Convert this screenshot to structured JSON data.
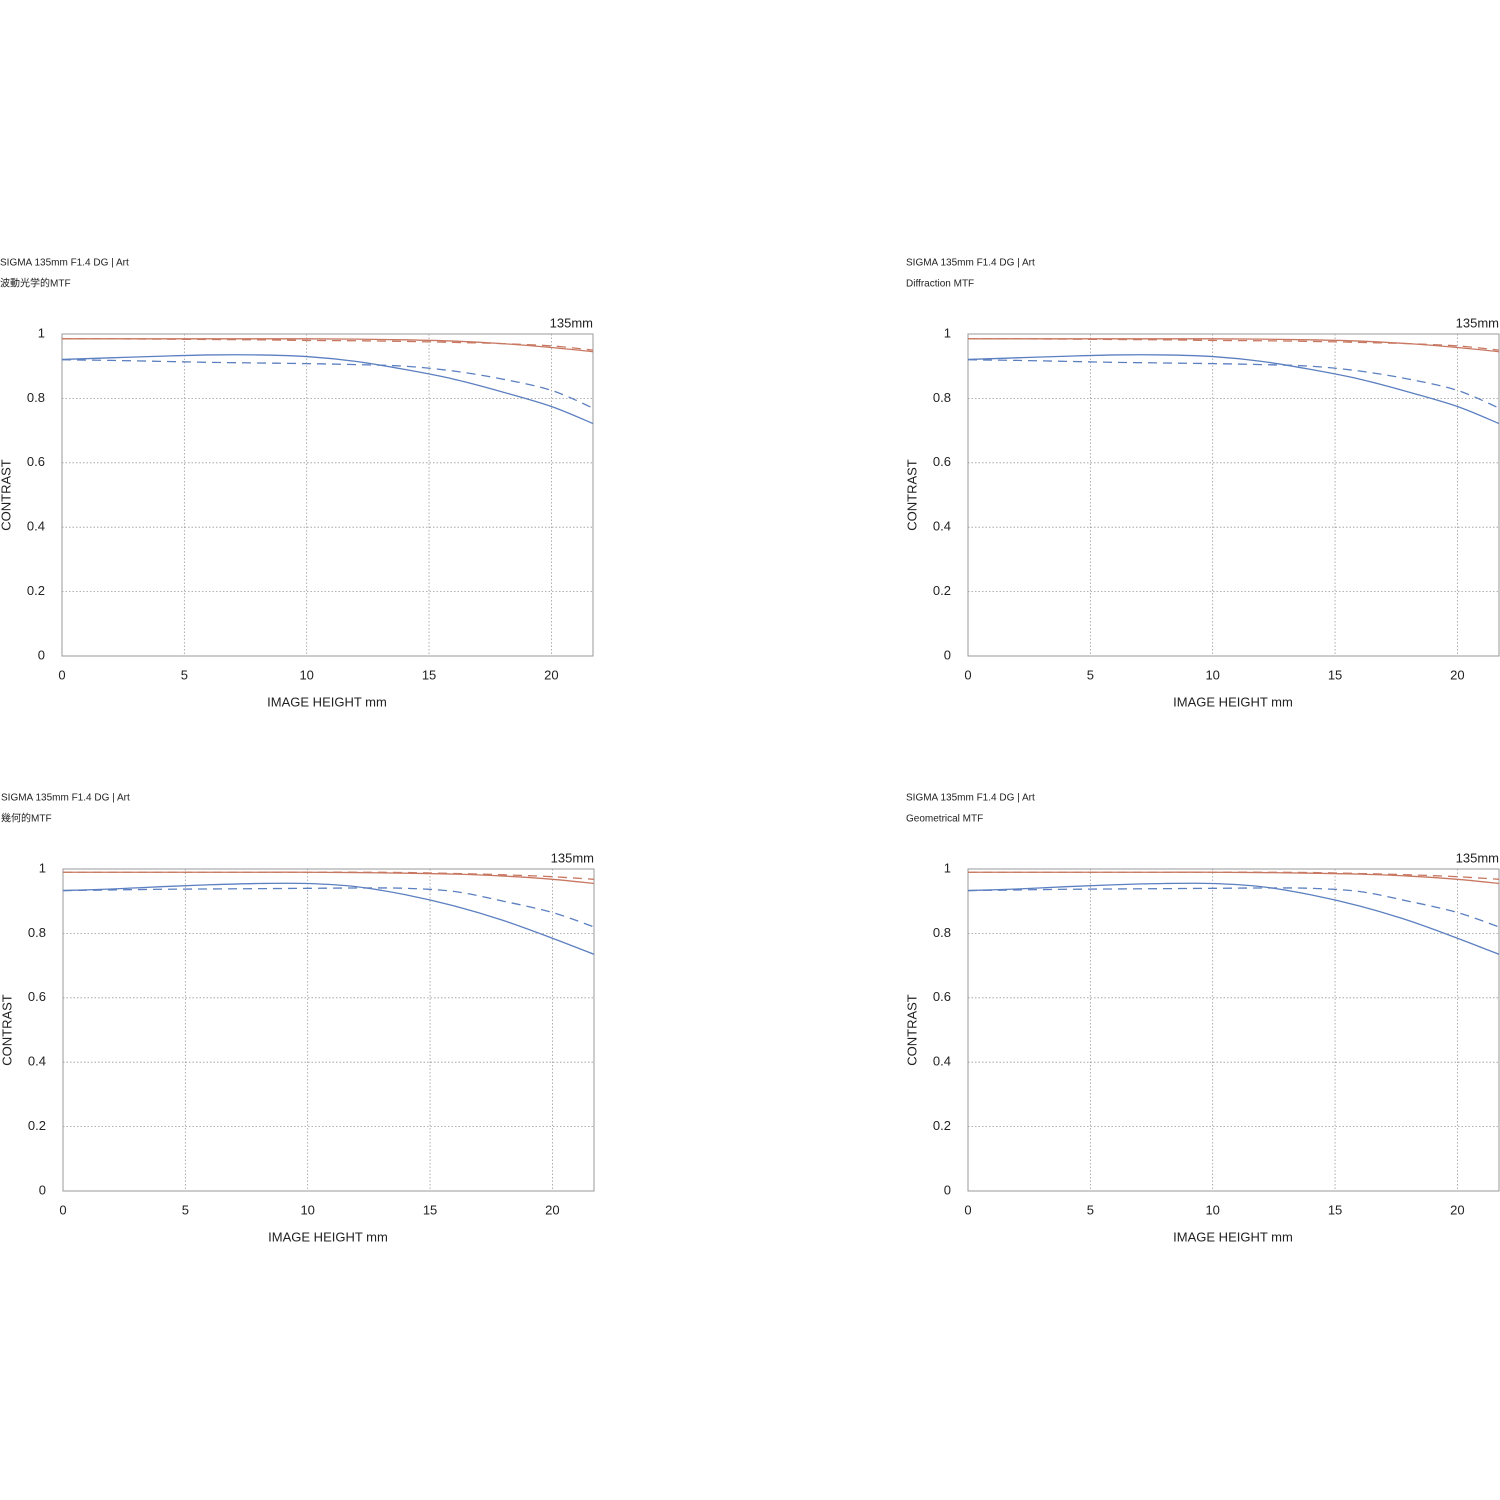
{
  "chart_data": [
    {
      "type": "line",
      "title": "SIGMA 135mm F1.4 DG | Art",
      "subtitle": "波動光学的MTF",
      "annotation": "135mm",
      "xlabel": "IMAGE HEIGHT  mm",
      "ylabel": "CONTRAST",
      "xlim": [
        0,
        21.7
      ],
      "ylim": [
        0,
        1
      ],
      "xticks": [
        0,
        5,
        10,
        15,
        20
      ],
      "yticks": [
        0,
        0.2,
        0.4,
        0.6,
        0.8,
        1
      ],
      "grid": true,
      "x": [
        0,
        2,
        4,
        6,
        8,
        10,
        12,
        14,
        16,
        18,
        20,
        21.7
      ],
      "series": [
        {
          "color": "#c87862",
          "dash": false,
          "values": [
            0.985,
            0.985,
            0.985,
            0.985,
            0.985,
            0.985,
            0.984,
            0.982,
            0.978,
            0.97,
            0.958,
            0.945
          ]
        },
        {
          "color": "#c87862",
          "dash": true,
          "values": [
            0.985,
            0.985,
            0.984,
            0.983,
            0.982,
            0.98,
            0.979,
            0.977,
            0.974,
            0.97,
            0.963,
            0.95
          ]
        },
        {
          "color": "#5b7fc0",
          "dash": false,
          "values": [
            0.921,
            0.926,
            0.931,
            0.935,
            0.935,
            0.93,
            0.915,
            0.89,
            0.86,
            0.82,
            0.775,
            0.722
          ]
        },
        {
          "color": "#5b7fc0",
          "dash": true,
          "values": [
            0.92,
            0.918,
            0.915,
            0.912,
            0.91,
            0.908,
            0.905,
            0.9,
            0.885,
            0.86,
            0.825,
            0.77
          ]
        }
      ]
    },
    {
      "type": "line",
      "title": "SIGMA 135mm F1.4 DG | Art",
      "subtitle": "Diffraction MTF",
      "annotation": "135mm",
      "xlabel": "IMAGE HEIGHT  mm",
      "ylabel": "CONTRAST",
      "xlim": [
        0,
        21.7
      ],
      "ylim": [
        0,
        1
      ],
      "xticks": [
        0,
        5,
        10,
        15,
        20
      ],
      "yticks": [
        0,
        0.2,
        0.4,
        0.6,
        0.8,
        1
      ],
      "grid": true,
      "x": [
        0,
        2,
        4,
        6,
        8,
        10,
        12,
        14,
        16,
        18,
        20,
        21.7
      ],
      "series": [
        {
          "color": "#c87862",
          "dash": false,
          "values": [
            0.985,
            0.985,
            0.985,
            0.985,
            0.985,
            0.985,
            0.984,
            0.982,
            0.978,
            0.97,
            0.958,
            0.945
          ]
        },
        {
          "color": "#c87862",
          "dash": true,
          "values": [
            0.985,
            0.985,
            0.984,
            0.983,
            0.982,
            0.98,
            0.979,
            0.977,
            0.974,
            0.97,
            0.963,
            0.95
          ]
        },
        {
          "color": "#5b7fc0",
          "dash": false,
          "values": [
            0.921,
            0.926,
            0.931,
            0.935,
            0.935,
            0.93,
            0.915,
            0.89,
            0.86,
            0.82,
            0.775,
            0.722
          ]
        },
        {
          "color": "#5b7fc0",
          "dash": true,
          "values": [
            0.92,
            0.918,
            0.915,
            0.912,
            0.91,
            0.908,
            0.905,
            0.9,
            0.885,
            0.86,
            0.825,
            0.77
          ]
        }
      ]
    },
    {
      "type": "line",
      "title": "SIGMA 135mm F1.4 DG | Art",
      "subtitle": "幾何的MTF",
      "annotation": "135mm",
      "xlabel": "IMAGE HEIGHT  mm",
      "ylabel": "CONTRAST",
      "xlim": [
        0,
        21.7
      ],
      "ylim": [
        0,
        1
      ],
      "xticks": [
        0,
        5,
        10,
        15,
        20
      ],
      "yticks": [
        0,
        0.2,
        0.4,
        0.6,
        0.8,
        1
      ],
      "grid": true,
      "x": [
        0,
        2,
        4,
        6,
        8,
        10,
        12,
        14,
        16,
        18,
        20,
        21.7
      ],
      "series": [
        {
          "color": "#c87862",
          "dash": false,
          "values": [
            0.99,
            0.99,
            0.99,
            0.99,
            0.99,
            0.99,
            0.989,
            0.987,
            0.984,
            0.978,
            0.968,
            0.955
          ]
        },
        {
          "color": "#c87862",
          "dash": true,
          "values": [
            0.99,
            0.99,
            0.99,
            0.99,
            0.99,
            0.99,
            0.99,
            0.989,
            0.986,
            0.982,
            0.976,
            0.968
          ]
        },
        {
          "color": "#5b7fc0",
          "dash": false,
          "values": [
            0.933,
            0.938,
            0.945,
            0.951,
            0.955,
            0.955,
            0.945,
            0.92,
            0.885,
            0.84,
            0.785,
            0.735
          ]
        },
        {
          "color": "#5b7fc0",
          "dash": true,
          "values": [
            0.933,
            0.935,
            0.937,
            0.938,
            0.939,
            0.94,
            0.941,
            0.94,
            0.93,
            0.9,
            0.865,
            0.82
          ]
        }
      ]
    },
    {
      "type": "line",
      "title": "SIGMA 135mm F1.4 DG | Art",
      "subtitle": "Geometrical MTF",
      "annotation": "135mm",
      "xlabel": "IMAGE HEIGHT  mm",
      "ylabel": "CONTRAST",
      "xlim": [
        0,
        21.7
      ],
      "ylim": [
        0,
        1
      ],
      "xticks": [
        0,
        5,
        10,
        15,
        20
      ],
      "yticks": [
        0,
        0.2,
        0.4,
        0.6,
        0.8,
        1
      ],
      "grid": true,
      "x": [
        0,
        2,
        4,
        6,
        8,
        10,
        12,
        14,
        16,
        18,
        20,
        21.7
      ],
      "series": [
        {
          "color": "#c87862",
          "dash": false,
          "values": [
            0.99,
            0.99,
            0.99,
            0.99,
            0.99,
            0.99,
            0.989,
            0.987,
            0.984,
            0.978,
            0.968,
            0.955
          ]
        },
        {
          "color": "#c87862",
          "dash": true,
          "values": [
            0.99,
            0.99,
            0.99,
            0.99,
            0.99,
            0.99,
            0.99,
            0.989,
            0.986,
            0.982,
            0.976,
            0.968
          ]
        },
        {
          "color": "#5b7fc0",
          "dash": false,
          "values": [
            0.933,
            0.938,
            0.945,
            0.951,
            0.955,
            0.955,
            0.945,
            0.92,
            0.885,
            0.84,
            0.785,
            0.735
          ]
        },
        {
          "color": "#5b7fc0",
          "dash": true,
          "values": [
            0.933,
            0.935,
            0.937,
            0.938,
            0.939,
            0.94,
            0.941,
            0.94,
            0.93,
            0.9,
            0.865,
            0.82
          ]
        }
      ]
    }
  ]
}
